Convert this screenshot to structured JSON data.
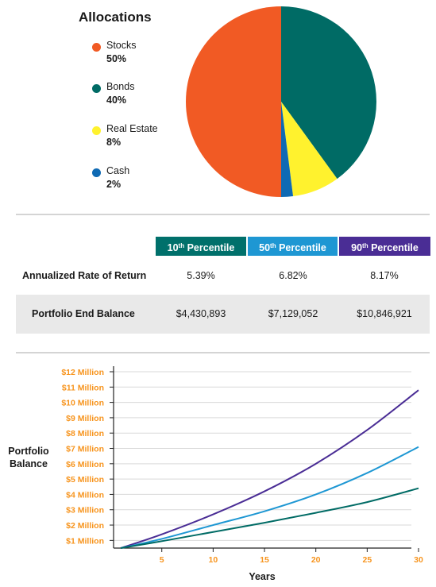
{
  "allocations": {
    "title": "Allocations",
    "items": [
      {
        "name": "Stocks",
        "pct": "50%",
        "value": 50,
        "color": "#f15a24"
      },
      {
        "name": "Bonds",
        "pct": "40%",
        "value": 40,
        "color": "#006b65"
      },
      {
        "name": "Real Estate",
        "pct": "8%",
        "value": 8,
        "color": "#fff22e"
      },
      {
        "name": "Cash",
        "pct": "2%",
        "value": 2,
        "color": "#0f6ab4"
      }
    ]
  },
  "table": {
    "headers": [
      {
        "num": "10",
        "suffix": "th",
        "text": "Percentile",
        "color": "#00706b"
      },
      {
        "num": "50",
        "suffix": "th",
        "text": "Percentile",
        "color": "#1e97d3"
      },
      {
        "num": "90",
        "suffix": "th",
        "text": "Percentile",
        "color": "#4a2d95"
      }
    ],
    "rows": [
      {
        "label": "Annualized Rate of Return",
        "values": [
          "5.39%",
          "6.82%",
          "8.17%"
        ]
      },
      {
        "label": "Portfolio End Balance",
        "values": [
          "$4,430,893",
          "$7,129,052",
          "$10,846,921"
        ]
      }
    ]
  },
  "chart_data": [
    {
      "type": "pie",
      "title": "Allocations",
      "categories": [
        "Stocks",
        "Bonds",
        "Real Estate",
        "Cash"
      ],
      "values": [
        50,
        40,
        8,
        2
      ],
      "colors": [
        "#f15a24",
        "#006b65",
        "#fff22e",
        "#0f6ab4"
      ]
    },
    {
      "type": "line",
      "xlabel": "Years",
      "ylabel_lines": [
        "Portfolio",
        "Balance"
      ],
      "xlim": [
        1,
        30
      ],
      "ylim": [
        0.5,
        12
      ],
      "xticks": [
        5,
        10,
        15,
        20,
        25,
        30
      ],
      "yticks": [
        1,
        2,
        3,
        4,
        5,
        6,
        7,
        8,
        9,
        10,
        11,
        12
      ],
      "ytick_labels": [
        "$1 Million",
        "$2 Million",
        "$3 Million",
        "$4 Million",
        "$5 Million",
        "$6 Million",
        "$7 Million",
        "$8 Million",
        "$9 Million",
        "$10 Million",
        "$11 Million",
        "$12 Million"
      ],
      "tick_label_color": "#f7941d",
      "grid": true,
      "x": [
        1,
        5,
        10,
        15,
        20,
        25,
        30
      ],
      "series": [
        {
          "color": "#4a2d95",
          "values": [
            0.5,
            1.4,
            2.7,
            4.2,
            6.0,
            8.2,
            10.8
          ]
        },
        {
          "color": "#1e97d3",
          "values": [
            0.5,
            1.1,
            2.0,
            2.9,
            4.0,
            5.4,
            7.1
          ]
        },
        {
          "color": "#006b65",
          "values": [
            0.5,
            0.95,
            1.55,
            2.15,
            2.8,
            3.5,
            4.4
          ]
        }
      ]
    }
  ]
}
